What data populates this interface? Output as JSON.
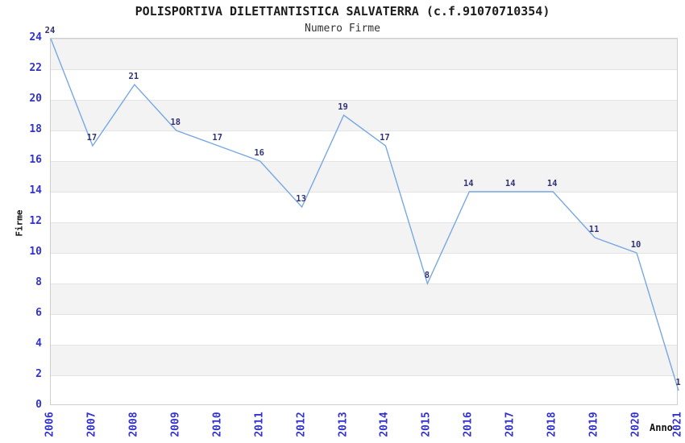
{
  "chart_data": {
    "type": "line",
    "title": "POLISPORTIVA DILETTANTISTICA SALVATERRA (c.f.91070710354)",
    "subtitle": "Numero Firme",
    "xlabel": "Anno",
    "ylabel": "Firme",
    "categories": [
      "2006",
      "2007",
      "2008",
      "2009",
      "2010",
      "2011",
      "2012",
      "2013",
      "2014",
      "2015",
      "2016",
      "2017",
      "2018",
      "2019",
      "2020",
      "2021"
    ],
    "values": [
      24,
      17,
      21,
      18,
      17,
      16,
      13,
      19,
      17,
      8,
      14,
      14,
      14,
      11,
      10,
      1
    ],
    "yticks": [
      0,
      2,
      4,
      6,
      8,
      10,
      12,
      14,
      16,
      18,
      20,
      22,
      24
    ],
    "ylim": [
      0,
      24
    ],
    "grid": "horizontal-bands-every-2-units",
    "legend_position": "none",
    "colors": {
      "line": "#78a8e4",
      "axis_tick_label": "#3333cc",
      "point_label": "#333377",
      "band_gray": "#f3f3f3",
      "grid_line": "#e4e4e4",
      "title_text": "#1c1c1c"
    }
  }
}
